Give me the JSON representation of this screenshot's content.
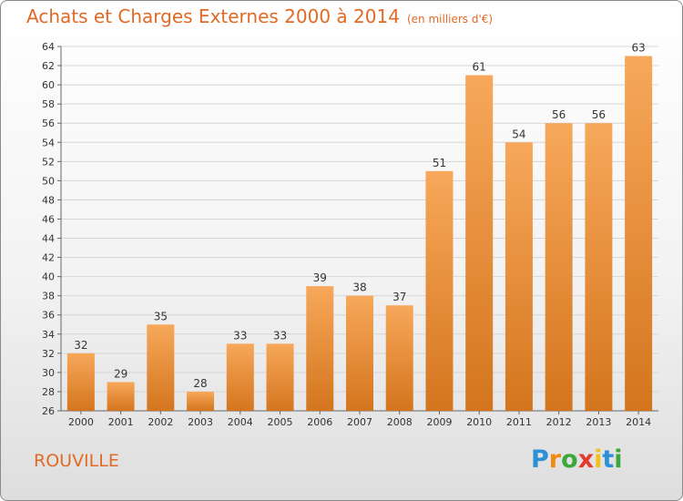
{
  "header": {
    "title": "Achats et Charges Externes 2000 à 2014",
    "subtitle": "(en milliers d'€)"
  },
  "footer": {
    "commune": "ROUVILLE",
    "logo_letters": [
      "P",
      "r",
      "o",
      "x",
      "i",
      "t",
      "i"
    ],
    "logo_colors": [
      "#2d8fd6",
      "#f28a12",
      "#3aa83a",
      "#e23b2b",
      "#f2c21a",
      "#2d8fd6",
      "#3aa83a"
    ]
  },
  "chart_data": {
    "type": "bar",
    "categories": [
      "2000",
      "2001",
      "2002",
      "2003",
      "2004",
      "2005",
      "2006",
      "2007",
      "2008",
      "2009",
      "2010",
      "2011",
      "2012",
      "2013",
      "2014"
    ],
    "values": [
      32,
      29,
      35,
      28,
      33,
      33,
      39,
      38,
      37,
      51,
      61,
      54,
      56,
      56,
      63
    ],
    "ylim": [
      26,
      64
    ],
    "yticks": [
      26,
      28,
      30,
      32,
      34,
      36,
      38,
      40,
      42,
      44,
      46,
      48,
      50,
      52,
      54,
      56,
      58,
      60,
      62,
      64
    ],
    "grid": true,
    "bar_color_top": "#f7a85a",
    "bar_color_bottom": "#d4751e",
    "data_labels": true
  }
}
